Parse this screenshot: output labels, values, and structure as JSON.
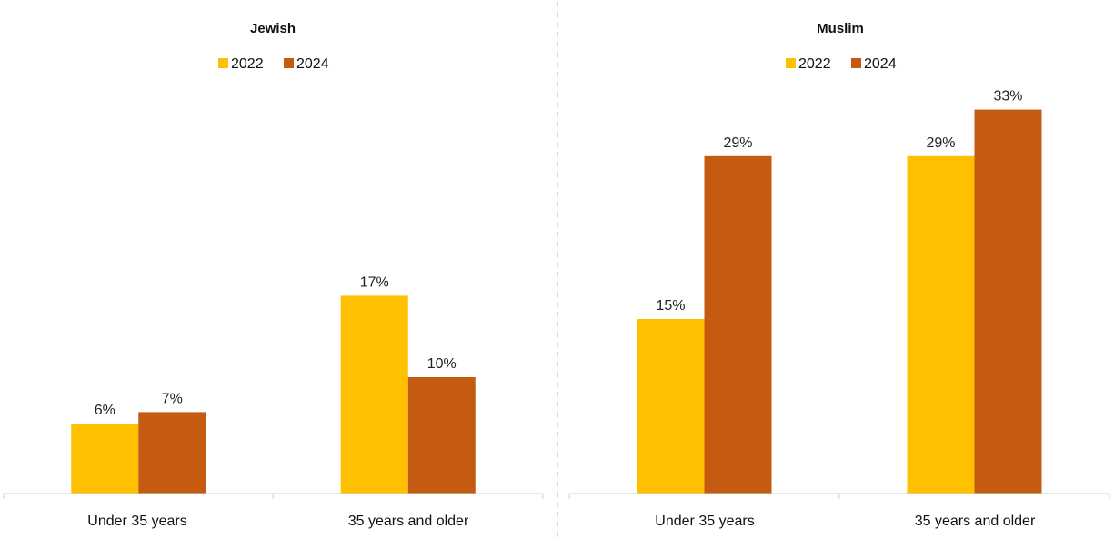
{
  "colors": {
    "s2022": "#FFC000",
    "s2024": "#C55A11"
  },
  "chart_data": [
    {
      "type": "bar",
      "title": "Jewish",
      "categories": [
        "Under 35 years",
        "35 years and older"
      ],
      "series": [
        {
          "name": "2022",
          "values": [
            6,
            17
          ],
          "labels": [
            "6%",
            "17%"
          ]
        },
        {
          "name": "2024",
          "values": [
            7,
            10
          ],
          "labels": [
            "7%",
            "10%"
          ]
        }
      ],
      "ylim": [
        0,
        36
      ],
      "grid": false,
      "legend": "top"
    },
    {
      "type": "bar",
      "title": "Muslim",
      "categories": [
        "Under 35 years",
        "35 years and older"
      ],
      "series": [
        {
          "name": "2022",
          "values": [
            15,
            29
          ],
          "labels": [
            "15%",
            "29%"
          ]
        },
        {
          "name": "2024",
          "values": [
            29,
            33
          ],
          "labels": [
            "29%",
            "33%"
          ]
        }
      ],
      "ylim": [
        0,
        36
      ],
      "grid": false,
      "legend": "top"
    }
  ]
}
